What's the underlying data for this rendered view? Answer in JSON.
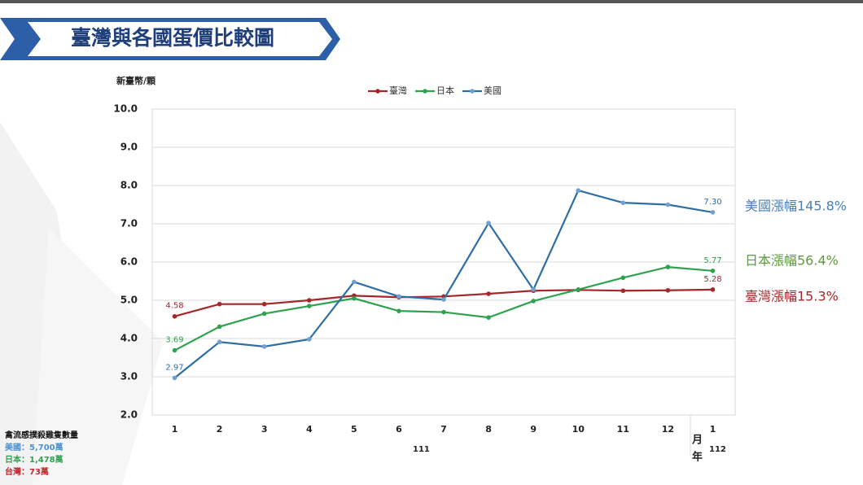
{
  "chart_data": {
    "type": "line",
    "title": "臺灣與各國蛋價比較圖",
    "y_label": "新臺幣/顆",
    "x_month_label": "月",
    "x_year_label": "年",
    "categories": [
      "1",
      "2",
      "3",
      "4",
      "5",
      "6",
      "7",
      "8",
      "9",
      "10",
      "11",
      "12",
      "1"
    ],
    "year_groups": [
      {
        "label": "111",
        "span": 12
      },
      {
        "label": "112",
        "span": 1
      }
    ],
    "ylim": [
      2,
      10
    ],
    "yticks": [
      {
        "value": 2,
        "label": "2.0"
      },
      {
        "value": 3,
        "label": "3.0"
      },
      {
        "value": 4,
        "label": "4.0"
      },
      {
        "value": 5,
        "label": "5.0"
      },
      {
        "value": 6,
        "label": "6.0"
      },
      {
        "value": 7,
        "label": "7.0"
      },
      {
        "value": 8,
        "label": "8.0"
      },
      {
        "value": 9,
        "label": "9.0"
      },
      {
        "value": 10,
        "label": "10.0"
      }
    ],
    "grid": true,
    "legend": "top",
    "series": [
      {
        "name": "臺灣",
        "color": "#a3272b",
        "values": [
          4.58,
          4.9,
          4.9,
          5.0,
          5.12,
          5.08,
          5.1,
          5.17,
          5.25,
          5.27,
          5.25,
          5.26,
          5.28
        ],
        "value_labels": [
          "4.58",
          null,
          null,
          null,
          null,
          null,
          null,
          null,
          null,
          null,
          null,
          null,
          "5.28"
        ]
      },
      {
        "name": "日本",
        "color": "#2ea24e",
        "values": [
          3.69,
          4.31,
          4.65,
          4.85,
          5.05,
          4.72,
          4.69,
          4.55,
          4.98,
          5.28,
          5.59,
          5.87,
          5.77
        ],
        "value_labels": [
          "3.69",
          null,
          null,
          null,
          null,
          null,
          null,
          null,
          null,
          null,
          null,
          null,
          "5.77"
        ]
      },
      {
        "name": "美國",
        "color": "#2f6ea5",
        "values": [
          2.97,
          3.91,
          3.79,
          3.98,
          5.48,
          5.1,
          5.02,
          7.02,
          5.28,
          7.87,
          7.55,
          7.5,
          7.3
        ],
        "value_labels": [
          "2.97",
          null,
          null,
          null,
          null,
          null,
          null,
          null,
          null,
          null,
          null,
          null,
          "7.30"
        ]
      }
    ],
    "annotations": [
      {
        "text": "美國漲幅145.8%",
        "color": "#4a7fb5"
      },
      {
        "text": "日本漲幅56.4%",
        "color": "#5d9a3f"
      },
      {
        "text": "臺灣漲幅15.3%",
        "color": "#a3272b"
      }
    ],
    "note": {
      "title": "禽流感撲殺雞隻數量",
      "lines": [
        {
          "text": "美國：5,700萬",
          "color": "#4a90d0"
        },
        {
          "text": "日本：1,478萬",
          "color": "#2ea24e"
        },
        {
          "text": "台灣：73萬",
          "color": "#c0272d"
        }
      ]
    }
  }
}
